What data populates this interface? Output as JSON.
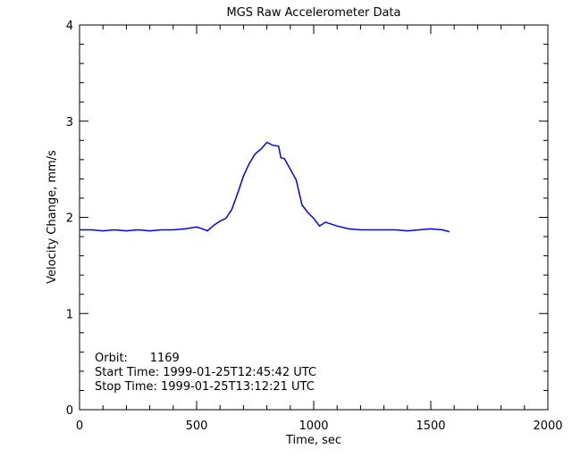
{
  "chart_data": {
    "type": "line",
    "title": "MGS Raw Accelerometer Data",
    "xlabel": "Time, sec",
    "ylabel": "Velocity Change, mm/s",
    "xlim": [
      0,
      2000
    ],
    "ylim": [
      0,
      4
    ],
    "xticks": [
      "0",
      "500",
      "1000",
      "1500",
      "2000"
    ],
    "yticks": [
      "0",
      "1",
      "2",
      "3",
      "4"
    ],
    "grid": false,
    "line_color": "#0000ff",
    "series": [
      {
        "x": [
          0,
          50,
          100,
          150,
          200,
          250,
          300,
          350,
          400,
          450,
          500,
          525,
          546,
          575,
          600,
          625,
          650,
          675,
          700,
          725,
          750,
          775,
          800,
          825,
          850,
          860,
          875,
          900,
          925,
          950,
          975,
          1000,
          1025,
          1050,
          1100,
          1150,
          1200,
          1250,
          1300,
          1350,
          1400,
          1450,
          1500,
          1550,
          1580
        ],
        "values": [
          1.87,
          1.87,
          1.86,
          1.87,
          1.86,
          1.87,
          1.86,
          1.87,
          1.87,
          1.88,
          1.9,
          1.88,
          1.86,
          1.92,
          1.96,
          1.99,
          2.08,
          2.25,
          2.43,
          2.56,
          2.66,
          2.71,
          2.78,
          2.75,
          2.74,
          2.62,
          2.61,
          2.5,
          2.39,
          2.13,
          2.05,
          1.99,
          1.91,
          1.95,
          1.91,
          1.88,
          1.87,
          1.87,
          1.87,
          1.87,
          1.86,
          1.87,
          1.88,
          1.87,
          1.85
        ]
      }
    ],
    "annotations": [
      "Orbit:      1169",
      "Start Time: 1999-01-25T12:45:42 UTC",
      "Stop Time: 1999-01-25T13:12:21 UTC"
    ]
  }
}
